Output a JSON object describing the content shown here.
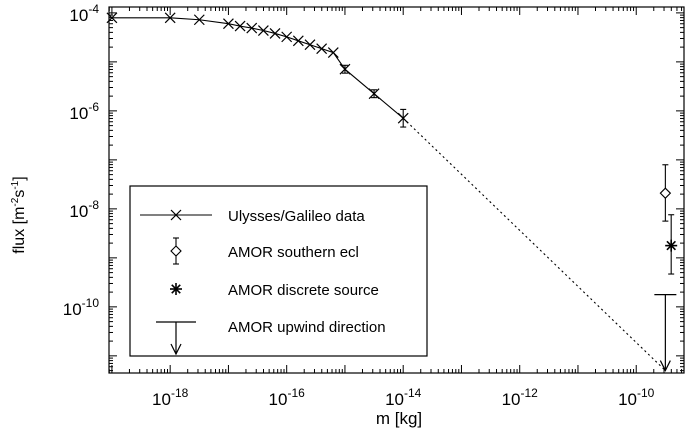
{
  "chart_data": {
    "type": "scatter",
    "title": "",
    "xlabel": "m [kg]",
    "ylabel": "flux [m-2 s-1]",
    "ylabel_parts": {
      "base": "flux [m",
      "exp1": "-2",
      "mid": "s",
      "exp2": "-1",
      "end": "]"
    },
    "x_scale": "log",
    "y_scale": "log",
    "xlim_log10": [
      -19.05,
      -9.18
    ],
    "ylim_log10": [
      -11.35,
      -3.88
    ],
    "x_ticks": [
      {
        "base": "10",
        "exp": "-18",
        "log": -18
      },
      {
        "base": "10",
        "exp": "-16",
        "log": -16
      },
      {
        "base": "10",
        "exp": "-14",
        "log": -14
      },
      {
        "base": "10",
        "exp": "-12",
        "log": -12
      },
      {
        "base": "10",
        "exp": "-10",
        "log": -10
      }
    ],
    "y_ticks": [
      {
        "base": "10",
        "exp": "-4",
        "log": -4
      },
      {
        "base": "10",
        "exp": "-6",
        "log": -6
      },
      {
        "base": "10",
        "exp": "-8",
        "log": -8
      },
      {
        "base": "10",
        "exp": "-10",
        "log": -10
      }
    ],
    "grid": false,
    "legend_position": "lower-left",
    "series": [
      {
        "name": "Ulysses/Galileo data",
        "marker": "x",
        "line": "solid",
        "x_log10": [
          -19,
          -18,
          -17.5,
          -17,
          -16.8,
          -16.6,
          -16.4,
          -16.2,
          -16.0,
          -15.8,
          -15.6,
          -15.4,
          -15.2,
          -15.0,
          -14.5,
          -14.0
        ],
        "y_log10": [
          -4.1,
          -4.1,
          -4.14,
          -4.22,
          -4.27,
          -4.31,
          -4.36,
          -4.42,
          -4.49,
          -4.57,
          -4.65,
          -4.73,
          -4.81,
          -5.15,
          -5.65,
          -6.15
        ],
        "yerr_log10": [
          0,
          0,
          0,
          0,
          0,
          0,
          0,
          0,
          0,
          0,
          0,
          0,
          0,
          0.08,
          0.08,
          0.18
        ]
      },
      {
        "name": "AMOR southern ecl",
        "marker": "diamond",
        "x_log10": [
          -9.5
        ],
        "y_log10": [
          -7.68
        ],
        "yerr_low": [
          -8.25
        ],
        "yerr_high": [
          -7.1
        ]
      },
      {
        "name": "AMOR discrete source",
        "marker": "asterisk",
        "x_log10": [
          -9.4
        ],
        "y_log10": [
          -8.75
        ],
        "yerr_low": [
          -9.33
        ],
        "yerr_high": [
          -8.12
        ]
      },
      {
        "name": "AMOR upwind direction",
        "marker": "upper-limit-arrow",
        "x_log10": [
          -9.5
        ],
        "y_log10": [
          -9.75
        ],
        "arrow_to_log10": [
          -11.3
        ]
      }
    ],
    "extrapolation": {
      "line": "dotted",
      "from": [
        -14.0,
        -6.15
      ],
      "to": [
        -9.5,
        -11.3
      ]
    }
  }
}
